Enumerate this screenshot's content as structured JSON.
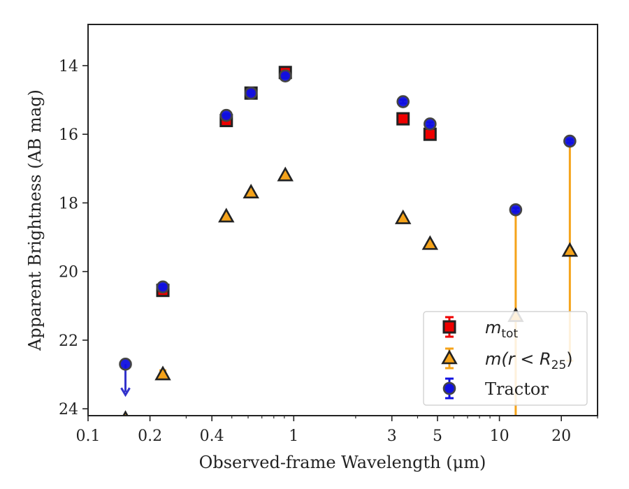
{
  "chart_data": {
    "type": "scatter",
    "xlabel": "Observed-frame Wavelength (μm)",
    "ylabel": "Apparent Brightness (AB mag)",
    "xscale": "log",
    "xlim": [
      0.1,
      30
    ],
    "ylim": [
      24.2,
      12.8
    ],
    "y_inverted": true,
    "xticks": [
      {
        "value": 0.1,
        "label": "0.1"
      },
      {
        "value": 0.2,
        "label": "0.2"
      },
      {
        "value": 0.4,
        "label": "0.4"
      },
      {
        "value": 1,
        "label": "1"
      },
      {
        "value": 3,
        "label": "3"
      },
      {
        "value": 5,
        "label": "5"
      },
      {
        "value": 10,
        "label": "10"
      },
      {
        "value": 20,
        "label": "20"
      }
    ],
    "yticks": [
      14,
      16,
      18,
      20,
      22,
      24
    ],
    "legend_position": "lower-right",
    "series": [
      {
        "name": "m_tot",
        "name_base": "m",
        "name_sub": "tot",
        "marker": "square",
        "color": "#ee0000",
        "edge_color": "#222222",
        "points": [
          {
            "x": 0.231,
            "y": 20.55,
            "err": 0.08
          },
          {
            "x": 0.47,
            "y": 15.6,
            "err": 0.1
          },
          {
            "x": 0.62,
            "y": 14.8,
            "err": 0.08
          },
          {
            "x": 0.91,
            "y": 14.2,
            "err": 0.12
          },
          {
            "x": 3.4,
            "y": 15.55,
            "err": 0.08
          },
          {
            "x": 4.6,
            "y": 16.0,
            "err": 0.08
          }
        ]
      },
      {
        "name": "m(r < R_25)",
        "name_base": "m(r < R",
        "name_sub": "25",
        "name_tail": ")",
        "marker": "triangle",
        "color": "#f5a31a",
        "edge_color": "#222222",
        "points": [
          {
            "x": 0.152,
            "y": 24.3,
            "err_low": 1.9,
            "err_high": 0.0
          },
          {
            "x": 0.231,
            "y": 23.0,
            "err": 0.12
          },
          {
            "x": 0.47,
            "y": 18.4,
            "err": 0.05
          },
          {
            "x": 0.62,
            "y": 17.7,
            "err": 0.05
          },
          {
            "x": 0.91,
            "y": 17.2,
            "err": 0.05
          },
          {
            "x": 3.4,
            "y": 18.45,
            "err": 0.05
          },
          {
            "x": 4.6,
            "y": 19.2,
            "err": 0.05
          },
          {
            "x": 12.0,
            "y": 21.3,
            "err_low": 4.05,
            "err_high": 3.0
          },
          {
            "x": 22.0,
            "y": 19.4,
            "err_low": 3.2,
            "err_high": 3.2
          }
        ]
      },
      {
        "name": "Tractor",
        "marker": "circle",
        "color": "#1010e0",
        "edge_color": "#444444",
        "points": [
          {
            "x": 0.152,
            "y": 22.7,
            "err": 0.0,
            "upper_limit": true
          },
          {
            "x": 0.231,
            "y": 20.45,
            "err": 0.05
          },
          {
            "x": 0.47,
            "y": 15.45,
            "err": 0.05
          },
          {
            "x": 0.62,
            "y": 14.8,
            "err": 0.05
          },
          {
            "x": 0.91,
            "y": 14.3,
            "err": 0.05
          },
          {
            "x": 3.4,
            "y": 15.05,
            "err": 0.05
          },
          {
            "x": 4.6,
            "y": 15.7,
            "err": 0.05
          },
          {
            "x": 12.0,
            "y": 18.2,
            "err": 0.05
          },
          {
            "x": 22.0,
            "y": 16.2,
            "err": 0.05
          }
        ]
      }
    ]
  }
}
